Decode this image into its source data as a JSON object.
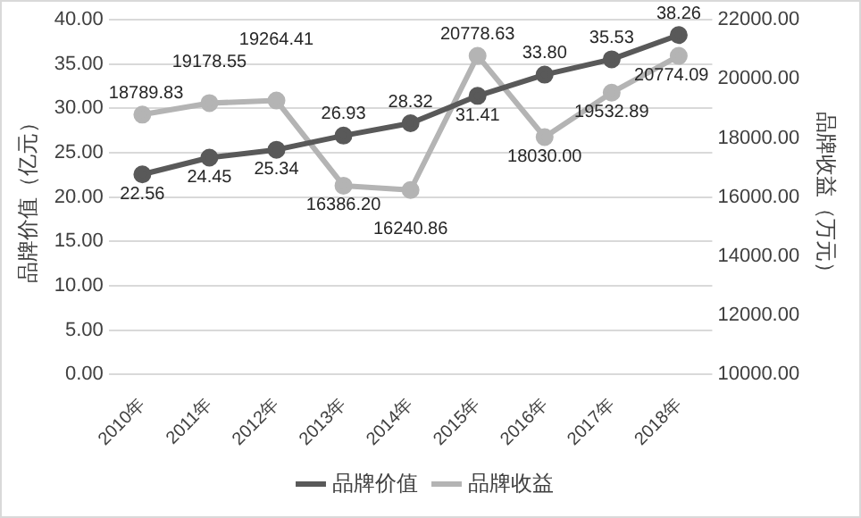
{
  "chart_data": {
    "type": "line",
    "ylabel": "品牌价值（亿元）",
    "y2label": "品牌收益（万元）",
    "categories": [
      "2010年",
      "2011年",
      "2012年",
      "2013年",
      "2014年",
      "2015年",
      "2016年",
      "2017年",
      "2018年"
    ],
    "series": [
      {
        "name": "品牌价值",
        "color": "#595959",
        "values": [
          22.56,
          24.45,
          25.34,
          26.93,
          28.32,
          31.41,
          33.8,
          35.53,
          38.26
        ],
        "value_labels": [
          "22.56",
          "24.45",
          "25.34",
          "26.93",
          "28.32",
          "31.41",
          "33.80",
          "35.53",
          "38.26"
        ]
      },
      {
        "name": "品牌收益",
        "color": "#b4b4b4",
        "axis": "y2",
        "values": [
          18789.83,
          19178.55,
          19264.41,
          16386.2,
          16240.86,
          20778.63,
          18030,
          19532.89,
          20774.09
        ],
        "value_labels": [
          "18789.83",
          "19178.55",
          "19264.41",
          "16386.20",
          "16240.86",
          "20778.63",
          "18030.00",
          "19532.89",
          "20774.09"
        ]
      }
    ],
    "ylim": [
      0,
      40
    ],
    "yticks": [
      {
        "value": 0,
        "label": "0.00"
      },
      {
        "value": 5,
        "label": "5.00"
      },
      {
        "value": 10,
        "label": "10.00"
      },
      {
        "value": 15,
        "label": "15.00"
      },
      {
        "value": 20,
        "label": "20.00"
      },
      {
        "value": 25,
        "label": "25.00"
      },
      {
        "value": 30,
        "label": "30.00"
      },
      {
        "value": 35,
        "label": "35.00"
      },
      {
        "value": 40,
        "label": "40.00"
      }
    ],
    "y2lim": [
      10000,
      22000
    ],
    "y2ticks": [
      {
        "value": 10000,
        "label": "10000.00"
      },
      {
        "value": 12000,
        "label": "12000.00"
      },
      {
        "value": 14000,
        "label": "14000.00"
      },
      {
        "value": 16000,
        "label": "16000.00"
      },
      {
        "value": 18000,
        "label": "18000.00"
      },
      {
        "value": 20000,
        "label": "20000.00"
      },
      {
        "value": 22000,
        "label": "22000.00"
      }
    ],
    "grid": "y",
    "legend": "bottom",
    "marker": "circle",
    "line_style": "solid"
  }
}
